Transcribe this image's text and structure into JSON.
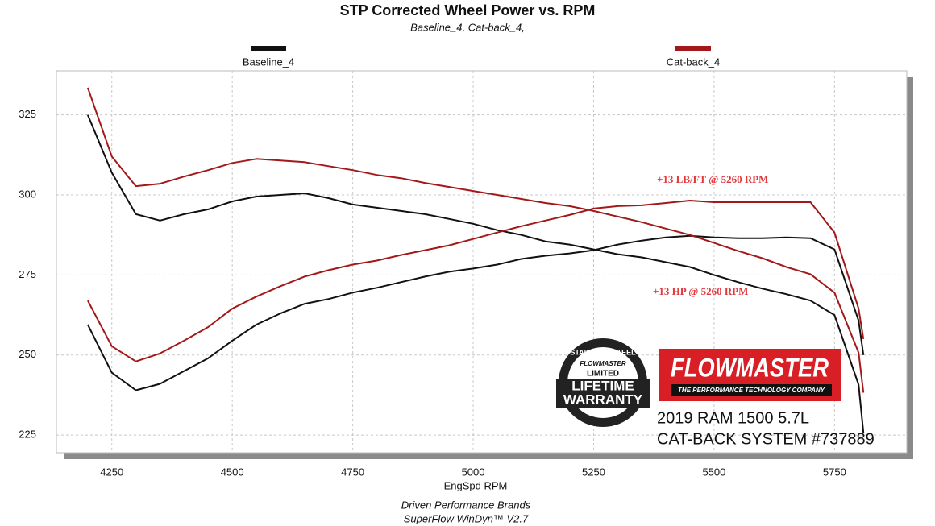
{
  "chart_data": {
    "type": "line",
    "title": "STP Corrected Wheel Power vs. RPM",
    "subtitle": "Baseline_4, Cat-back_4,",
    "x_label": "EngSpd  RPM",
    "footer": [
      "Driven Performance Brands",
      "SuperFlow WinDyn™ V2.7"
    ],
    "annotations": [
      "+13 LB/FT @ 5260 RPM",
      "+13 HP @ 5260 RPM"
    ],
    "logo": {
      "brand": "FLOWMASTER",
      "tagline": "THE PERFORMANCE TECHNOLOGY COMPANY",
      "badge": [
        "STAINLESS STEEL",
        "FLOWMASTER",
        "LIMITED",
        "LIFETIME",
        "WARRANTY"
      ],
      "vehicle": [
        "2019 RAM 1500 5.7L",
        "CAT-BACK SYSTEM #737889"
      ]
    },
    "x": [
      4200,
      4250,
      4300,
      4350,
      4400,
      4450,
      4500,
      4550,
      4600,
      4650,
      4700,
      4750,
      4800,
      4850,
      4900,
      4950,
      5000,
      5050,
      5100,
      5150,
      5200,
      5250,
      5300,
      5350,
      5400,
      5450,
      5500,
      5550,
      5600,
      5650,
      5700,
      5750,
      5800,
      5810
    ],
    "xlim": [
      4135,
      5900
    ],
    "xticks": [
      4250,
      4500,
      4750,
      5000,
      5250,
      5500,
      5750
    ],
    "ylim": [
      219.5,
      338.75
    ],
    "yticks": [
      225,
      250,
      275,
      300,
      325
    ],
    "grid": true,
    "series": [
      {
        "name": "Baseline_4",
        "color": "#111111",
        "lines": [
          {
            "values": [
              325,
              307,
              294,
              292,
              294,
              295.5,
              298,
              299.5,
              300,
              300.5,
              299,
              297,
              296,
              295,
              294,
              292.5,
              291,
              289,
              287.5,
              285.5,
              284.5,
              283,
              281.5,
              280.5,
              279,
              277.5,
              275,
              272.75,
              270.75,
              269,
              267,
              262.5,
              240.75,
              225.75
            ]
          },
          {
            "values": [
              259.5,
              244.5,
              239,
              241,
              245,
              249,
              254.5,
              259.5,
              263,
              266,
              267.5,
              269.5,
              271,
              272.75,
              274.5,
              276,
              277,
              278.25,
              280,
              281,
              281.75,
              282.75,
              284.5,
              285.75,
              286.75,
              287.25,
              286.75,
              286.5,
              286.5,
              286.75,
              286.5,
              283,
              260.75,
              250
            ]
          }
        ]
      },
      {
        "name": "Cat-back_4",
        "color": "#a31818",
        "lines": [
          {
            "values": [
              333.5,
              312,
              302.75,
              303.5,
              305.75,
              307.75,
              310,
              311.25,
              310.75,
              310.25,
              309,
              307.75,
              306.25,
              305.25,
              303.75,
              302.5,
              301.25,
              300,
              298.75,
              297.5,
              296.5,
              295,
              293.25,
              291.5,
              289.5,
              287.5,
              285,
              282.5,
              280.25,
              277.5,
              275.25,
              269.5,
              250.75,
              238.25
            ]
          },
          {
            "values": [
              267,
              252.75,
              248,
              250.5,
              254.5,
              258.75,
              264.5,
              268.25,
              271.5,
              274.5,
              276.5,
              278.25,
              279.5,
              281.25,
              282.75,
              284.25,
              286.25,
              288.25,
              290.25,
              292,
              293.75,
              295.75,
              296.5,
              296.75,
              297.5,
              298.25,
              297.75,
              297.75,
              297.75,
              297.75,
              297.75,
              288.25,
              264.5,
              255
            ]
          }
        ]
      }
    ]
  }
}
